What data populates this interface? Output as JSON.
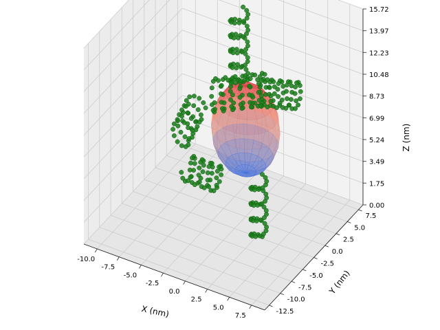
{
  "chart_data": {
    "type": "scatter",
    "projection": "3d",
    "title": "",
    "xlabel": "X (nm)",
    "ylabel": "Y (nm)",
    "zlabel": "Z (nm)",
    "xlim": [
      -11.5,
      9.0
    ],
    "ylim": [
      -13.5,
      8.5
    ],
    "zlim": [
      0.0,
      15.72
    ],
    "x_ticks": [
      "-10.0",
      "-7.5",
      "-5.0",
      "-2.5",
      "0.0",
      "2.5",
      "5.0",
      "7.5"
    ],
    "y_ticks": [
      "-12.5",
      "-10.0",
      "-7.5",
      "-5.0",
      "-2.5",
      "0.0",
      "2.5",
      "5.0",
      "7.5"
    ],
    "z_ticks": [
      "0.00",
      "1.75",
      "3.49",
      "5.24",
      "6.99",
      "8.73",
      "10.48",
      "12.23",
      "13.97",
      "15.72"
    ],
    "grid": true,
    "marker_color": "#1a7f1a",
    "surface_colormap": [
      "#3b6fe0",
      "#f2a58a",
      "#d8222d"
    ],
    "series": [
      {
        "kind": "surface",
        "center": [
          0.0,
          0.0,
          7.0
        ],
        "radius": 3.5,
        "z_range": [
          3.5,
          10.5
        ]
      },
      {
        "kind": "points",
        "helices": [
          {
            "center": [
              -1.5,
              1.5,
              12.5
            ],
            "dir": [
              0,
              0,
              1
            ],
            "radius": 0.9,
            "length": 6.0,
            "turns": 5
          },
          {
            "center": [
              2.5,
              2.5,
              9.5
            ],
            "dir": [
              1,
              0,
              0.2
            ],
            "radius": 1.0,
            "length": 5.0,
            "turns": 5
          },
          {
            "center": [
              -6.0,
              -1.0,
              6.5
            ],
            "dir": [
              0,
              1,
              0.3
            ],
            "radius": 1.0,
            "length": 4.0,
            "turns": 4
          },
          {
            "center": [
              -2.5,
              -4.5,
              4.5
            ],
            "dir": [
              1,
              0,
              0
            ],
            "radius": 1.0,
            "length": 4.0,
            "turns": 4
          },
          {
            "center": [
              3.0,
              -3.0,
              2.5
            ],
            "dir": [
              0,
              0,
              1
            ],
            "radius": 0.8,
            "length": 5.0,
            "turns": 4
          },
          {
            "center": [
              -1.0,
              0.5,
              9.5
            ],
            "dir": [
              1,
              1,
              0
            ],
            "radius": 1.2,
            "length": 6.0,
            "turns": 6
          }
        ]
      }
    ]
  }
}
